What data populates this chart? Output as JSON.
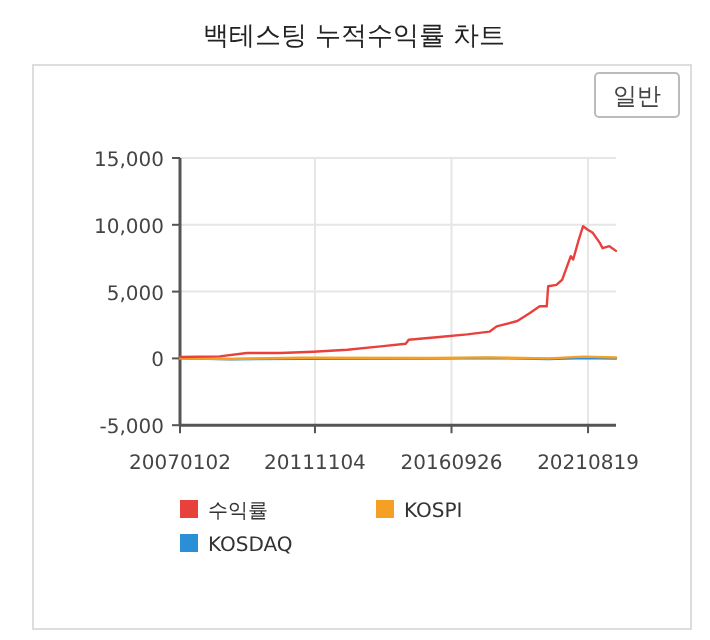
{
  "chart_data": {
    "type": "line",
    "title": "백테스팅 누적수익률 차트",
    "annotations": [
      "일반"
    ],
    "xlim": [
      "2007-01-02",
      "2022-08-20"
    ],
    "xticks": [
      {
        "value": "2007-01-02",
        "label": "20070102"
      },
      {
        "value": "2011-11-04",
        "label": "20111104"
      },
      {
        "value": "2016-09-26",
        "label": "20160926"
      },
      {
        "value": "2021-08-19",
        "label": "20210819"
      }
    ],
    "ylim": [
      -5000,
      15000
    ],
    "yticks": [
      {
        "value": -5000,
        "label": "-5,000"
      },
      {
        "value": 0,
        "label": "0"
      },
      {
        "value": 5000,
        "label": "5,000"
      },
      {
        "value": 10000,
        "label": "10,000"
      },
      {
        "value": 15000,
        "label": "15,000"
      }
    ],
    "grid": true,
    "legend": "bottom",
    "marker": "none",
    "line_style": "solid",
    "series": [
      {
        "name": "수익률",
        "color": "#e8413c",
        "x": [
          "2007-01-02",
          "2008-06-05",
          "2009-05-25",
          "2010-08-05",
          "2011-10-15",
          "2013-01-01",
          "2014-03-15",
          "2015-02-05",
          "2015-03-15",
          "2016-04-20",
          "2017-04-20",
          "2018-02-05",
          "2018-05-10",
          "2019-02-05",
          "2019-07-20",
          "2019-11-25",
          "2020-02-25",
          "2020-03-15",
          "2020-07-01",
          "2020-09-15",
          "2021-01-05",
          "2021-02-05",
          "2021-04-20",
          "2021-06-15",
          "2021-08-10",
          "2021-10-20",
          "2022-01-20",
          "2022-02-25",
          "2022-05-25",
          "2022-08-20"
        ],
        "values": [
          100,
          150,
          400,
          400,
          500,
          650,
          900,
          1100,
          1400,
          1600,
          1800,
          2000,
          2400,
          2800,
          3400,
          3900,
          3900,
          5400,
          5500,
          5900,
          7650,
          7400,
          8900,
          9900,
          9650,
          9400,
          8650,
          8250,
          8400,
          8050
        ]
      },
      {
        "name": "KOSPI",
        "color": "#f5a025",
        "x": [
          "2007-01-02",
          "2008-10-25",
          "2011-04-30",
          "2016-01-01",
          "2018-01-25",
          "2020-03-20",
          "2021-06-25",
          "2022-08-20"
        ],
        "values": [
          0,
          -40,
          50,
          30,
          80,
          0,
          130,
          70
        ]
      },
      {
        "name": "KOSDAQ",
        "color": "#2a8fd6",
        "x": [
          "2007-01-02",
          "2008-10-25",
          "2011-04-30",
          "2016-01-01",
          "2018-01-25",
          "2020-03-20",
          "2021-06-25",
          "2022-08-20"
        ],
        "values": [
          0,
          -60,
          -30,
          -10,
          30,
          -40,
          30,
          -10
        ]
      }
    ]
  }
}
